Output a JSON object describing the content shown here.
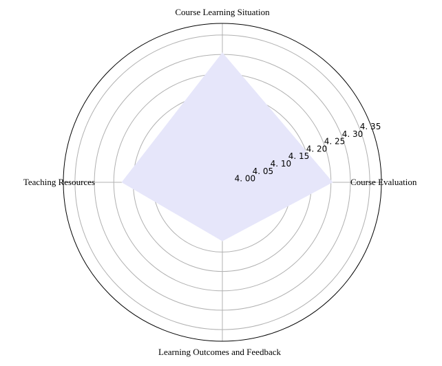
{
  "chart_data": {
    "type": "radar",
    "categories": [
      "Course Learning Situation",
      "Course Evaluation",
      "Learning Outcomes and Feedback",
      "Teaching Resources"
    ],
    "series": [
      {
        "values": [
          4.305,
          4.255,
          4.122,
          4.23
        ],
        "fill_color": "#e6e6fa"
      }
    ],
    "radial_min": 3.97,
    "radial_max": 4.38,
    "ticks": [
      4.0,
      4.05,
      4.1,
      4.15,
      4.2,
      4.25,
      4.3,
      4.35
    ],
    "tick_labels": [
      "4. 00",
      "4. 05",
      "4. 10",
      "4. 15",
      "4. 20",
      "4. 25",
      "4. 30",
      "4. 35"
    ],
    "grid": true,
    "colors": {
      "grid": "#b0b0b0",
      "outer_circle": "#000000",
      "fill": "#e6e6fa"
    }
  }
}
